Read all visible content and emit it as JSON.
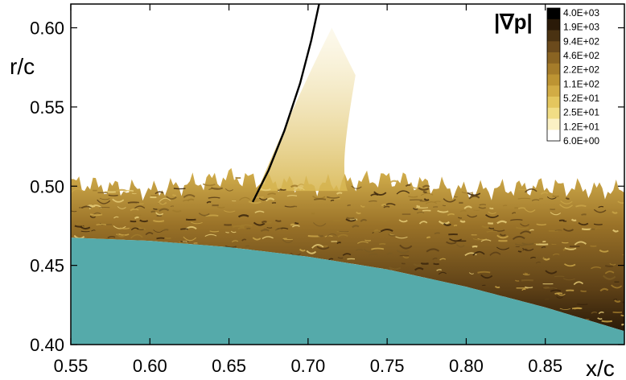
{
  "chart_data": {
    "type": "heatmap",
    "title": "",
    "xlabel": "x/c",
    "ylabel": "r/c",
    "xlim": [
      0.55,
      0.9
    ],
    "ylim": [
      0.4,
      0.615
    ],
    "x_ticks": [
      "0.55",
      "0.60",
      "0.65",
      "0.70",
      "0.75",
      "0.80",
      "0.85"
    ],
    "x_tick_values": [
      0.55,
      0.6,
      0.65,
      0.7,
      0.75,
      0.8,
      0.85
    ],
    "y_ticks": [
      "0.40",
      "0.45",
      "0.50",
      "0.55",
      "0.60"
    ],
    "y_tick_values": [
      0.4,
      0.45,
      0.5,
      0.55,
      0.6
    ],
    "legend": {
      "title": "|∇p|",
      "placement": "top-right",
      "levels": [
        "4.0E+03",
        "1.9E+03",
        "9.4E+02",
        "4.6E+02",
        "2.2E+02",
        "1.1E+02",
        "5.2E+01",
        "2.5E+01",
        "1.2E+01",
        "6.0E+00"
      ]
    },
    "colors": {
      "colormap": [
        "#000000",
        "#2a1a08",
        "#4a3212",
        "#6b4a1c",
        "#8a6422",
        "#a57c2a",
        "#bd9433",
        "#d2ac45",
        "#e4c65e",
        "#f1dd85",
        "#fbf1c4",
        "#ffffff"
      ],
      "body": "#55aaaa"
    },
    "surface": {
      "x": [
        0.55,
        0.6,
        0.65,
        0.7,
        0.75,
        0.8,
        0.85,
        0.9
      ],
      "r": [
        0.4675,
        0.4655,
        0.4615,
        0.4555,
        0.4475,
        0.4365,
        0.4235,
        0.4085
      ]
    },
    "shock": {
      "x": [
        0.665,
        0.675,
        0.685,
        0.695,
        0.702,
        0.707
      ],
      "r": [
        0.49,
        0.51,
        0.535,
        0.565,
        0.592,
        0.615
      ]
    },
    "turbulent_layer_edge": {
      "x": [
        0.55,
        0.6,
        0.65,
        0.7,
        0.75,
        0.8,
        0.85,
        0.9
      ],
      "r": [
        0.502,
        0.497,
        0.506,
        0.5,
        0.505,
        0.497,
        0.5,
        0.497
      ]
    },
    "grid": false
  }
}
